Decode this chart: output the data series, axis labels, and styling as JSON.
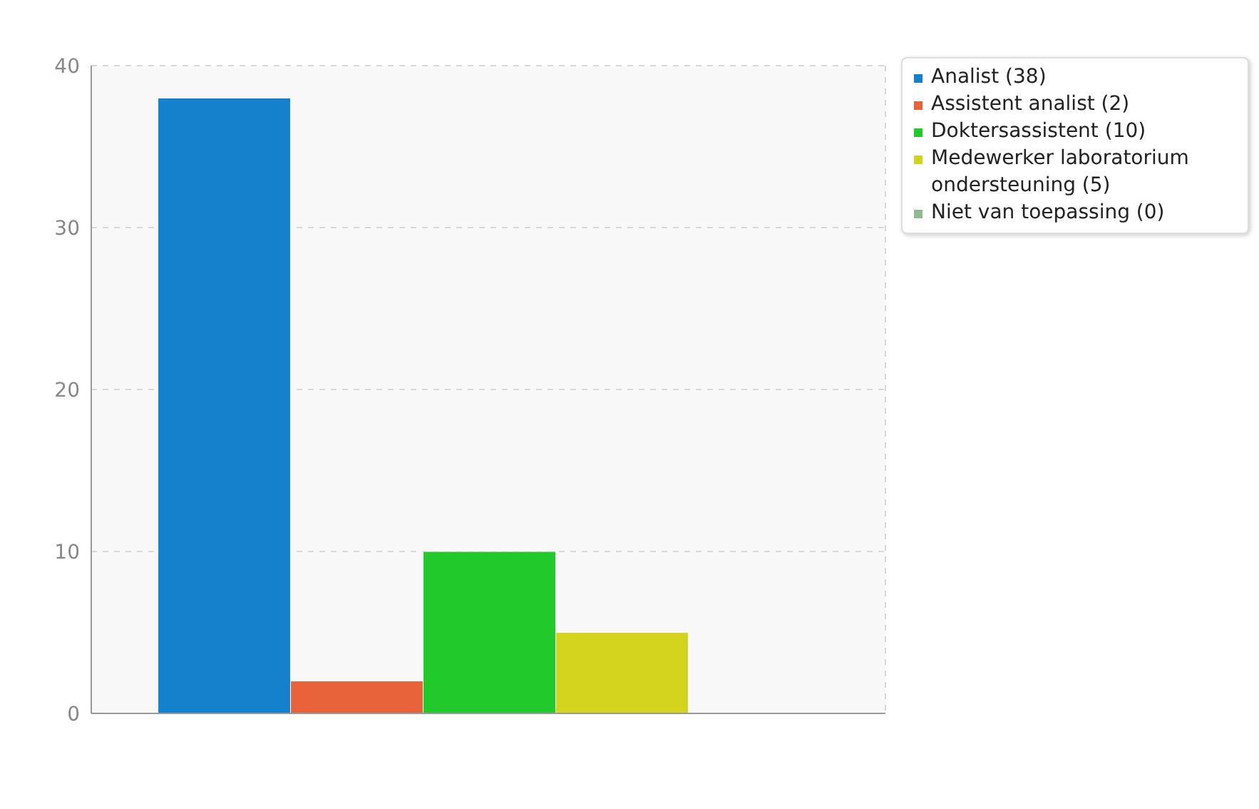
{
  "chart_data": {
    "type": "bar",
    "categories": [
      null
    ],
    "series": [
      {
        "name": "Analist (38)",
        "color": "#1580cc",
        "values": [
          38
        ]
      },
      {
        "name": "Assistent analist (2)",
        "color": "#e8623a",
        "values": [
          2
        ]
      },
      {
        "name": "Doktersassistent (10)",
        "color": "#22c92a",
        "values": [
          10
        ]
      },
      {
        "name": "Medewerker laboratorium ondersteuning (5)",
        "color": "#d4d41e",
        "values": [
          5
        ]
      },
      {
        "name": "Niet van toepassing (0)",
        "color": "#8fbc8f",
        "values": [
          0
        ]
      }
    ],
    "ylim": [
      0,
      40
    ],
    "yticks": [
      0,
      10,
      20,
      30,
      40
    ],
    "grid": true,
    "legend": "top right",
    "tick_labels": "y"
  }
}
